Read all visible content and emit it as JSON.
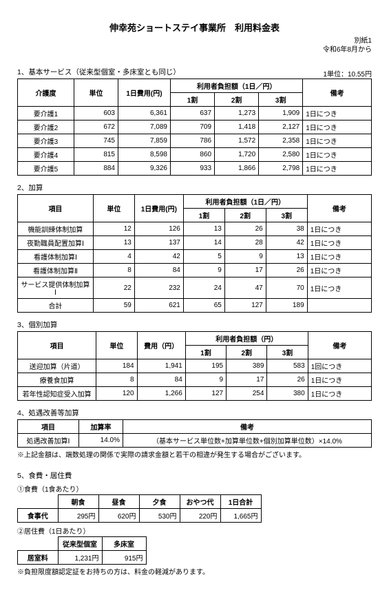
{
  "header": {
    "title": "伸幸苑ショートステイ事業所　利用料金表",
    "appendix": "別紙1",
    "effective": "令和6年8月から",
    "unit_note": "1単位：10.55円"
  },
  "s1": {
    "title": "1、基本サービス（従来型個室・多床室とも同じ）",
    "h_care": "介護度",
    "h_unit": "単位",
    "h_daycost": "1日費用(円)",
    "h_burden": "利用者負担額（1日／円）",
    "h_r1": "1割",
    "h_r2": "2割",
    "h_r3": "3割",
    "h_remark": "備考",
    "rows": [
      {
        "care": "要介護1",
        "unit": "603",
        "cost": "6,361",
        "r1": "637",
        "r2": "1,273",
        "r3": "1,909",
        "remark": "1日につき"
      },
      {
        "care": "要介護2",
        "unit": "672",
        "cost": "7,089",
        "r1": "709",
        "r2": "1,418",
        "r3": "2,127",
        "remark": "1日につき"
      },
      {
        "care": "要介護3",
        "unit": "745",
        "cost": "7,859",
        "r1": "786",
        "r2": "1,572",
        "r3": "2,358",
        "remark": "1日につき"
      },
      {
        "care": "要介護4",
        "unit": "815",
        "cost": "8,598",
        "r1": "860",
        "r2": "1,720",
        "r3": "2,580",
        "remark": "1日につき"
      },
      {
        "care": "要介護5",
        "unit": "884",
        "cost": "9,326",
        "r1": "933",
        "r2": "1,866",
        "r3": "2,798",
        "remark": "1日につき"
      }
    ]
  },
  "s2": {
    "title": "2、加算",
    "h_item": "項目",
    "rows": [
      {
        "item": "機能訓練体制加算",
        "unit": "12",
        "cost": "126",
        "r1": "13",
        "r2": "26",
        "r3": "38",
        "remark": "1日につき"
      },
      {
        "item": "夜勤職員配置加算Ⅰ",
        "unit": "13",
        "cost": "137",
        "r1": "14",
        "r2": "28",
        "r3": "42",
        "remark": "1日につき"
      },
      {
        "item": "看護体制加算Ⅰ",
        "unit": "4",
        "cost": "42",
        "r1": "5",
        "r2": "9",
        "r3": "13",
        "remark": "1日につき"
      },
      {
        "item": "看護体制加算Ⅱ",
        "unit": "8",
        "cost": "84",
        "r1": "9",
        "r2": "17",
        "r3": "26",
        "remark": "1日につき"
      },
      {
        "item": "サービス提供体制加算Ⅰ",
        "unit": "22",
        "cost": "232",
        "r1": "24",
        "r2": "47",
        "r3": "70",
        "remark": "1日につき"
      },
      {
        "item": "合計",
        "unit": "59",
        "cost": "621",
        "r1": "65",
        "r2": "127",
        "r3": "189",
        "remark": ""
      }
    ]
  },
  "s3": {
    "title": "3、個別加算",
    "h_cost": "費用（円）",
    "h_burden": "利用者負担額（円）",
    "rows": [
      {
        "item": "送迎加算（片道）",
        "unit": "184",
        "cost": "1,941",
        "r1": "195",
        "r2": "389",
        "r3": "583",
        "remark": "1回につき"
      },
      {
        "item": "療養食加算",
        "unit": "8",
        "cost": "84",
        "r1": "9",
        "r2": "17",
        "r3": "26",
        "remark": "1日につき"
      },
      {
        "item": "若年性認知症受入加算",
        "unit": "120",
        "cost": "1,266",
        "r1": "127",
        "r2": "254",
        "r3": "380",
        "remark": "1日につき"
      }
    ]
  },
  "s4": {
    "title": "4、処遇改善等加算",
    "h_item": "項目",
    "h_rate": "加算率",
    "h_remark": "備考",
    "row": {
      "item": "処遇改善加算Ⅰ",
      "rate": "14.0%",
      "remark": "（基本サービス単位数+加算単位数+個別加算単位数）×14.0%"
    },
    "note": "※上記金額は、端数処理の関係で実際の請求金額と若干の相違が発生する場合がございます。"
  },
  "s5": {
    "title": "5、食費・居住費",
    "meal": {
      "subtitle": "①食費（1食あたり）",
      "h_bf": "朝食",
      "h_lu": "昼食",
      "h_di": "夕食",
      "h_sn": "おやつ代",
      "h_total": "1日合計",
      "label": "食事代",
      "bf": "295円",
      "lu": "620円",
      "di": "530円",
      "sn": "220円",
      "total": "1,665円"
    },
    "room": {
      "subtitle": "②居住費（1日あたり）",
      "h_priv": "従来型個室",
      "h_multi": "多床室",
      "label": "居室料",
      "priv": "1,231円",
      "multi": "915円"
    },
    "note": "※負担限度額認定証をお持ちの方は、料金の軽減があります。"
  }
}
